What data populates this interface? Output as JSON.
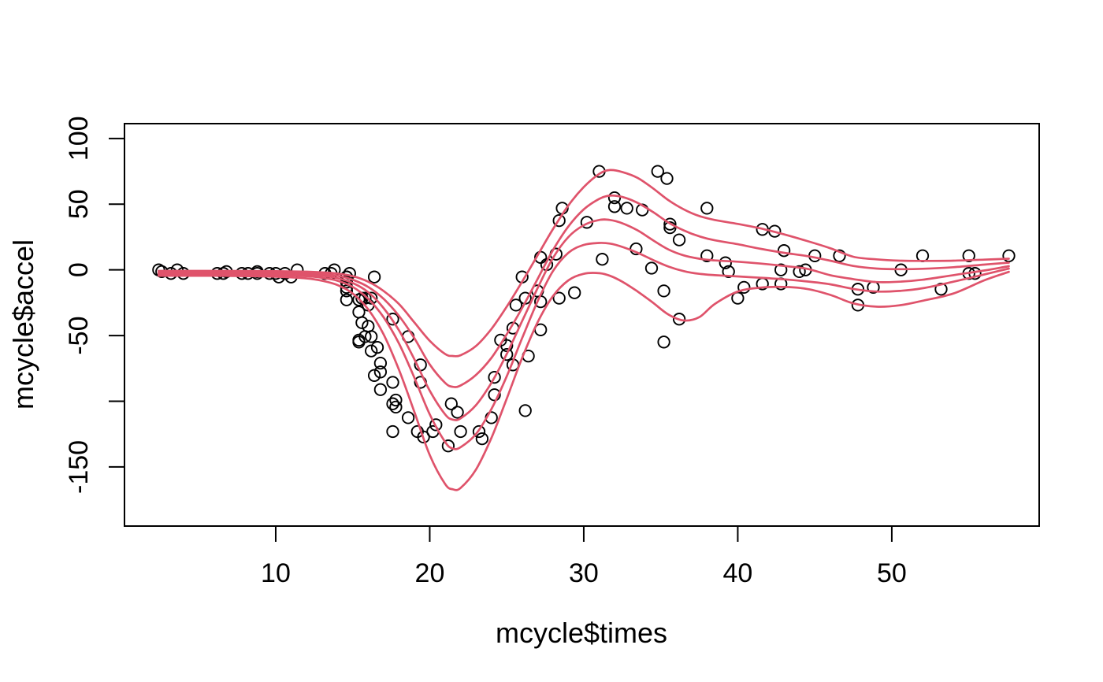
{
  "chart_data": {
    "type": "scatter",
    "title": "",
    "xlabel": "mcycle$times",
    "ylabel": "mcycle$accel",
    "grid": false,
    "legend": "none",
    "xlim": [
      0.18,
      59.57
    ],
    "ylim": [
      -195.0,
      111.3
    ],
    "x_ticks": [
      {
        "v": 10,
        "label": "10"
      },
      {
        "v": 20,
        "label": "20"
      },
      {
        "v": 30,
        "label": "30"
      },
      {
        "v": 40,
        "label": "40"
      },
      {
        "v": 50,
        "label": "50"
      }
    ],
    "y_ticks": [
      {
        "v": 100,
        "label": "100"
      },
      {
        "v": 50,
        "label": "50"
      },
      {
        "v": 0,
        "label": "0"
      },
      {
        "v": -50,
        "label": "-50"
      },
      {
        "v": -100,
        "label": ""
      },
      {
        "v": -150,
        "label": "-150"
      }
    ],
    "colors": {
      "curve": "#DF536B",
      "points": "#000000",
      "axis": "#000000",
      "background": "#FFFFFF"
    },
    "point_style": {
      "shape": "open-circle",
      "radius_px": 7.2,
      "stroke_px": 1.9
    },
    "curve_style": {
      "stroke_px": 2.7
    },
    "points": {
      "times": [
        2.4,
        2.6,
        3.2,
        3.6,
        4.0,
        6.2,
        6.6,
        6.8,
        7.8,
        8.2,
        8.8,
        8.8,
        9.6,
        10.0,
        10.2,
        10.6,
        11.0,
        11.4,
        13.2,
        13.6,
        13.8,
        14.6,
        14.6,
        14.6,
        14.6,
        14.6,
        14.6,
        14.8,
        15.4,
        15.4,
        15.4,
        15.4,
        15.6,
        15.6,
        15.8,
        15.8,
        16.0,
        16.0,
        16.2,
        16.2,
        16.2,
        16.4,
        16.4,
        16.6,
        16.8,
        16.8,
        16.8,
        17.6,
        17.6,
        17.6,
        17.6,
        17.8,
        17.8,
        18.6,
        18.6,
        19.2,
        19.4,
        19.4,
        19.6,
        20.2,
        20.4,
        21.2,
        21.4,
        21.8,
        22.0,
        23.2,
        23.4,
        24.0,
        24.2,
        24.2,
        24.6,
        25.0,
        25.0,
        25.4,
        25.4,
        25.6,
        26.0,
        26.2,
        26.2,
        26.4,
        27.0,
        27.2,
        27.2,
        27.2,
        27.6,
        28.2,
        28.4,
        28.4,
        28.6,
        29.4,
        30.2,
        31.0,
        31.2,
        32.0,
        32.0,
        32.8,
        33.4,
        33.8,
        34.4,
        34.8,
        35.2,
        35.2,
        35.4,
        35.6,
        35.6,
        36.2,
        36.2,
        38.0,
        38.0,
        39.2,
        39.4,
        40.0,
        40.4,
        41.6,
        41.6,
        42.4,
        42.8,
        42.8,
        43.0,
        44.0,
        44.4,
        45.0,
        46.6,
        47.8,
        47.8,
        48.8,
        50.6,
        52.0,
        53.2,
        55.0,
        55.0,
        55.4,
        57.6
      ],
      "accel": [
        0.0,
        -1.3,
        -2.7,
        0.0,
        -2.7,
        -2.7,
        -2.7,
        -1.3,
        -2.7,
        -2.7,
        -1.3,
        -2.7,
        -2.7,
        -2.7,
        -5.4,
        -2.7,
        -5.4,
        0.0,
        -2.7,
        -2.7,
        0.0,
        -13.3,
        -5.4,
        -5.4,
        -9.3,
        -16.0,
        -22.8,
        -2.7,
        -22.8,
        -32.1,
        -53.5,
        -54.9,
        -40.2,
        -21.5,
        -21.5,
        -50.8,
        -42.9,
        -26.8,
        -21.5,
        -50.8,
        -61.7,
        -5.4,
        -80.4,
        -59.0,
        -71.0,
        -91.1,
        -77.7,
        -37.5,
        -85.6,
        -123.1,
        -101.9,
        -99.1,
        -104.4,
        -112.5,
        -50.8,
        -123.1,
        -85.6,
        -72.3,
        -127.2,
        -123.1,
        -117.9,
        -134.0,
        -101.9,
        -108.4,
        -123.1,
        -123.1,
        -128.5,
        -112.5,
        -95.1,
        -81.8,
        -53.5,
        -64.4,
        -57.6,
        -72.3,
        -44.3,
        -26.8,
        -5.4,
        -107.1,
        -21.5,
        -65.6,
        -16.0,
        -45.6,
        -24.2,
        9.5,
        4.0,
        12.0,
        -21.5,
        37.5,
        46.9,
        -17.4,
        36.2,
        75.0,
        8.1,
        54.9,
        48.2,
        46.9,
        16.0,
        45.6,
        1.3,
        75.0,
        -16.0,
        -54.9,
        69.6,
        34.8,
        32.1,
        -37.5,
        22.8,
        46.9,
        10.7,
        5.4,
        -1.3,
        -21.5,
        -13.3,
        30.8,
        -10.7,
        29.4,
        0.0,
        -10.7,
        14.7,
        -1.3,
        0.0,
        10.7,
        10.7,
        -26.8,
        -14.7,
        -13.3,
        0.0,
        10.7,
        -14.7,
        -2.7,
        10.7,
        -2.7,
        10.7
      ]
    },
    "curve_x": [
      2.4,
      6,
      10,
      12,
      13,
      14,
      15,
      16,
      17,
      18,
      19,
      20,
      21,
      21.5,
      22,
      23,
      24,
      25,
      26,
      27,
      28,
      29,
      30,
      31,
      31.7,
      32.5,
      33.5,
      34.5,
      35.5,
      36.5,
      37.5,
      38.5,
      40,
      41.5,
      43,
      44.5,
      46,
      47.5,
      49,
      50.5,
      52,
      54,
      56,
      57.6
    ],
    "curves": [
      {
        "name": "curve-1-top",
        "y": [
          -0.8,
          -0.8,
          -1.0,
          -1.4,
          -1.9,
          -2.8,
          -4.8,
          -9,
          -16,
          -26,
          -40,
          -54,
          -64,
          -65.5,
          -65,
          -58,
          -45,
          -28,
          -9,
          11,
          31,
          49,
          63,
          73,
          76,
          74.5,
          70,
          62,
          53,
          46,
          41,
          38,
          35,
          31.5,
          27,
          22,
          16.5,
          10,
          8,
          7,
          6.8,
          7,
          7.8,
          8.5
        ]
      },
      {
        "name": "curve-2",
        "y": [
          -1.6,
          -1.6,
          -1.9,
          -2.5,
          -3.2,
          -4.5,
          -7.5,
          -13,
          -22,
          -35,
          -52,
          -72,
          -86,
          -89,
          -88,
          -80,
          -67,
          -49,
          -29,
          -7,
          15,
          33,
          46,
          54,
          56.5,
          55.5,
          51,
          44,
          36,
          30,
          25.5,
          22.5,
          19.5,
          16,
          13,
          10.5,
          7,
          3,
          1,
          0.5,
          0.8,
          2,
          4,
          5.5
        ]
      },
      {
        "name": "curve-3-middle",
        "y": [
          -2.5,
          -2.5,
          -2.9,
          -3.6,
          -4.5,
          -6.3,
          -10,
          -17,
          -29,
          -46,
          -68,
          -92,
          -110,
          -114,
          -113,
          -103,
          -86,
          -64,
          -39,
          -14,
          9,
          25,
          34,
          38,
          38,
          35.5,
          30,
          22.5,
          15.5,
          11,
          8.5,
          7.2,
          6.2,
          4.8,
          3,
          0.8,
          -4,
          -7,
          -9.3,
          -9,
          -7.5,
          -4,
          -0.5,
          2.8
        ]
      },
      {
        "name": "curve-4",
        "y": [
          -3.4,
          -3.4,
          -3.9,
          -4.8,
          -6,
          -8.2,
          -13,
          -22,
          -36,
          -56,
          -82,
          -110,
          -131,
          -136,
          -135,
          -125,
          -106,
          -81,
          -52,
          -24,
          -1,
          13,
          19,
          20.5,
          20,
          17.5,
          13,
          7.5,
          2.5,
          -1,
          -3,
          -4,
          -5,
          -6,
          -7.2,
          -8.8,
          -11,
          -14.5,
          -16.5,
          -16,
          -14,
          -9,
          -3.5,
          1
        ]
      },
      {
        "name": "curve-5-bottom",
        "y": [
          -4.5,
          -4.5,
          -5.2,
          -6.5,
          -8.2,
          -11.5,
          -18,
          -30,
          -49,
          -76,
          -108,
          -141,
          -163,
          -167,
          -166,
          -152,
          -128,
          -98,
          -67,
          -40,
          -20,
          -8,
          -3,
          -2.5,
          -4.5,
          -9,
          -16.5,
          -25,
          -34,
          -38.5,
          -36,
          -26,
          -16.5,
          -13.5,
          -13,
          -14.5,
          -19,
          -25.5,
          -28,
          -27,
          -23.5,
          -18,
          -8,
          -1.5
        ]
      }
    ]
  }
}
